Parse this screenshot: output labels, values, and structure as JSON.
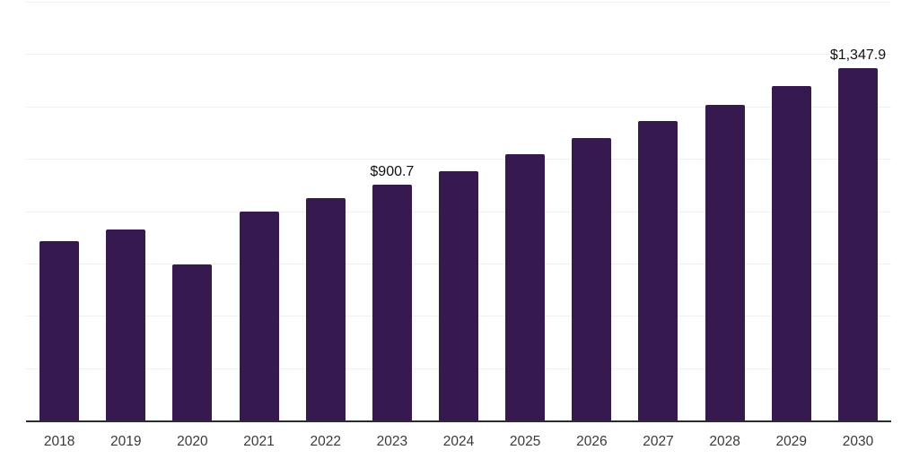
{
  "chart_data": {
    "type": "bar",
    "title": "",
    "xlabel": "",
    "ylabel": "",
    "categories": [
      "2018",
      "2019",
      "2020",
      "2021",
      "2022",
      "2023",
      "2024",
      "2025",
      "2026",
      "2027",
      "2028",
      "2029",
      "2030"
    ],
    "values": [
      686,
      731,
      597,
      800,
      850,
      900.7,
      953,
      1016,
      1079,
      1144,
      1207,
      1278,
      1347.9
    ],
    "bar_labels": {
      "5": "$900.7",
      "12": "$1,347.9"
    },
    "value_prefix": "$",
    "ylim": [
      0,
      1600
    ],
    "gridline_interval": 200,
    "grid": "horizontal",
    "legend_position": "none",
    "bar_color": "#36194e",
    "axis_color": "#2b2b2b",
    "gridline_color": "#f0f0f0",
    "bar_label_color": "#111111",
    "tick_label_color": "#3a3a3a"
  }
}
